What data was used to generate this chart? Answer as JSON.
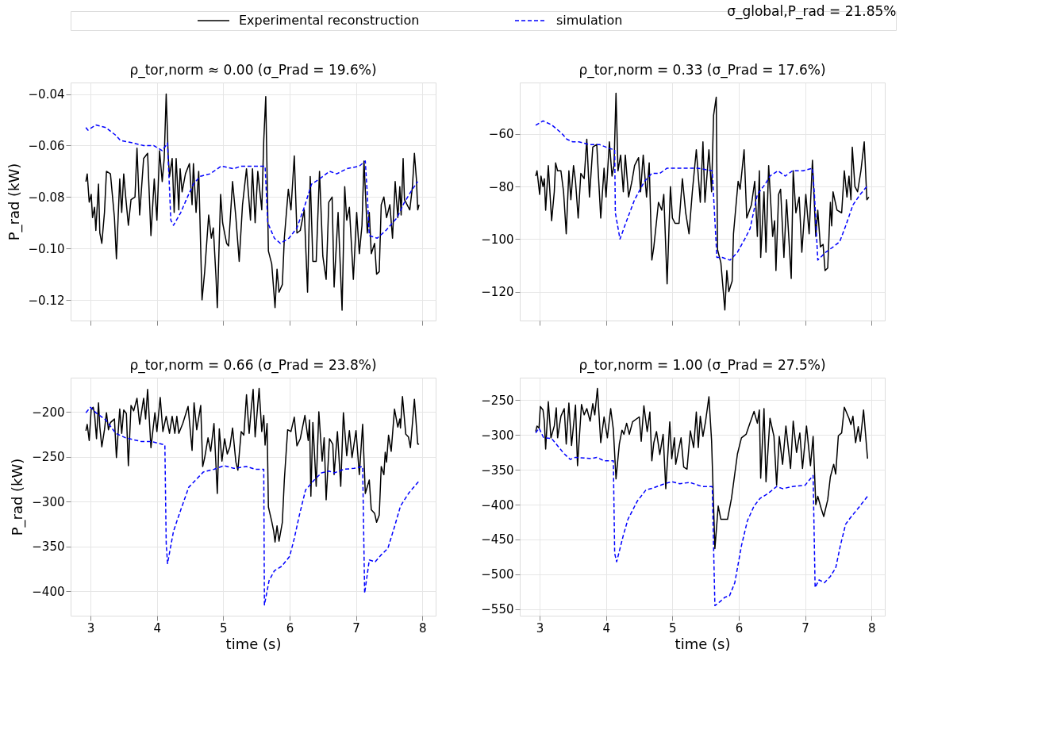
{
  "chart_data": [
    {
      "type": "line",
      "title": "ρ_tor,norm ≈ 0.00  (σ_Prad = 19.6%)",
      "ylabel": "P_rad (kW)",
      "legend": "top",
      "grid": true,
      "marker": "none",
      "tick_labels": "y",
      "annotations": [
        "σ_global,P_rad = 21.85%"
      ],
      "xlim": [
        2.7,
        8.2
      ],
      "xticks": [
        3,
        4,
        5,
        6,
        7,
        8
      ],
      "ylim": [
        -0.128,
        -0.0355
      ],
      "yticks": [
        {
          "value": -0.12,
          "label": "−0.12"
        },
        {
          "value": -0.1,
          "label": "−0.10"
        },
        {
          "value": -0.08,
          "label": "−0.08"
        },
        {
          "value": -0.06,
          "label": "−0.06"
        },
        {
          "value": -0.04,
          "label": "−0.04"
        }
      ],
      "series": [
        {
          "name": "Experimental reconstruction",
          "color": "#000000",
          "line_style": "solid",
          "x": [
            2.93,
            2.95,
            2.98,
            3.01,
            3.03,
            3.06,
            3.08,
            3.12,
            3.14,
            3.17,
            3.21,
            3.24,
            3.3,
            3.36,
            3.39,
            3.44,
            3.47,
            3.5,
            3.53,
            3.57,
            3.61,
            3.67,
            3.7,
            3.74,
            3.8,
            3.86,
            3.91,
            3.96,
            4.0,
            4.04,
            4.08,
            4.11,
            4.14,
            4.17,
            4.19,
            4.23,
            4.26,
            4.29,
            4.33,
            4.35,
            4.38,
            4.43,
            4.49,
            4.53,
            4.55,
            4.59,
            4.63,
            4.68,
            4.72,
            4.78,
            4.82,
            4.85,
            4.89,
            4.91,
            4.96,
            4.99,
            5.05,
            5.08,
            5.14,
            5.19,
            5.24,
            5.29,
            5.35,
            5.41,
            5.44,
            5.48,
            5.52,
            5.58,
            5.61,
            5.64,
            5.68,
            5.73,
            5.78,
            5.81,
            5.84,
            5.89,
            5.92,
            5.98,
            6.02,
            6.07,
            6.11,
            6.16,
            6.22,
            6.27,
            6.31,
            6.35,
            6.4,
            6.45,
            6.5,
            6.55,
            6.59,
            6.64,
            6.67,
            6.73,
            6.79,
            6.83,
            6.86,
            6.9,
            6.96,
            7.01,
            7.05,
            7.09,
            7.12,
            7.17,
            7.2,
            7.23,
            7.28,
            7.31,
            7.35,
            7.38,
            7.42,
            7.46,
            7.51,
            7.55,
            7.59,
            7.63,
            7.66,
            7.68,
            7.71,
            7.73,
            7.81,
            7.85,
            7.88,
            7.91,
            7.93,
            7.95
          ],
          "values": [
            -0.074,
            -0.071,
            -0.082,
            -0.079,
            -0.088,
            -0.084,
            -0.093,
            -0.075,
            -0.094,
            -0.098,
            -0.086,
            -0.07,
            -0.071,
            -0.088,
            -0.104,
            -0.073,
            -0.086,
            -0.071,
            -0.08,
            -0.091,
            -0.081,
            -0.08,
            -0.061,
            -0.087,
            -0.065,
            -0.063,
            -0.095,
            -0.073,
            -0.089,
            -0.062,
            -0.074,
            -0.065,
            -0.04,
            -0.064,
            -0.072,
            -0.065,
            -0.086,
            -0.065,
            -0.085,
            -0.069,
            -0.078,
            -0.071,
            -0.067,
            -0.083,
            -0.067,
            -0.086,
            -0.07,
            -0.12,
            -0.109,
            -0.087,
            -0.096,
            -0.092,
            -0.111,
            -0.123,
            -0.079,
            -0.09,
            -0.098,
            -0.099,
            -0.074,
            -0.088,
            -0.105,
            -0.083,
            -0.069,
            -0.089,
            -0.069,
            -0.09,
            -0.07,
            -0.085,
            -0.058,
            -0.041,
            -0.101,
            -0.106,
            -0.123,
            -0.108,
            -0.117,
            -0.114,
            -0.096,
            -0.077,
            -0.085,
            -0.064,
            -0.094,
            -0.093,
            -0.085,
            -0.117,
            -0.072,
            -0.105,
            -0.105,
            -0.07,
            -0.103,
            -0.112,
            -0.082,
            -0.08,
            -0.115,
            -0.086,
            -0.124,
            -0.076,
            -0.089,
            -0.084,
            -0.112,
            -0.086,
            -0.102,
            -0.091,
            -0.066,
            -0.094,
            -0.086,
            -0.102,
            -0.098,
            -0.11,
            -0.109,
            -0.083,
            -0.08,
            -0.088,
            -0.083,
            -0.096,
            -0.074,
            -0.088,
            -0.076,
            -0.087,
            -0.065,
            -0.081,
            -0.085,
            -0.076,
            -0.063,
            -0.073,
            -0.085,
            -0.083
          ]
        },
        {
          "name": "simulation",
          "color": "#0000ff",
          "line_style": "dashed",
          "x": [
            2.93,
            2.96,
            3.08,
            3.23,
            3.38,
            3.45,
            3.64,
            3.8,
            3.95,
            4.08,
            4.16,
            4.17,
            4.21,
            4.25,
            4.36,
            4.46,
            4.55,
            4.65,
            4.8,
            4.97,
            5.16,
            5.27,
            5.5,
            5.63,
            5.67,
            5.77,
            5.86,
            5.99,
            6.11,
            6.22,
            6.33,
            6.45,
            6.6,
            6.71,
            6.86,
            7.05,
            7.14,
            7.17,
            7.2,
            7.32,
            7.45,
            7.62,
            7.73,
            7.85,
            7.93
          ],
          "values": [
            -0.053,
            -0.054,
            -0.052,
            -0.053,
            -0.056,
            -0.058,
            -0.059,
            -0.06,
            -0.06,
            -0.062,
            -0.059,
            -0.065,
            -0.089,
            -0.091,
            -0.086,
            -0.08,
            -0.075,
            -0.072,
            -0.071,
            -0.068,
            -0.069,
            -0.068,
            -0.068,
            -0.068,
            -0.09,
            -0.096,
            -0.098,
            -0.096,
            -0.092,
            -0.084,
            -0.075,
            -0.073,
            -0.07,
            -0.071,
            -0.069,
            -0.068,
            -0.066,
            -0.079,
            -0.095,
            -0.096,
            -0.093,
            -0.088,
            -0.082,
            -0.077,
            -0.074
          ]
        }
      ]
    },
    {
      "type": "line",
      "title": "ρ_tor,norm = 0.33  (σ_Prad = 17.6%)",
      "grid": true,
      "marker": "none",
      "tick_labels": "y",
      "xlim": [
        2.7,
        8.2
      ],
      "xticks": [
        3,
        4,
        5,
        6,
        7,
        8
      ],
      "ylim": [
        -131,
        -40.4
      ],
      "yticks": [
        -120,
        -100,
        -80,
        -60
      ],
      "series": [
        {
          "name": "Experimental reconstruction",
          "color": "#000000",
          "line_style": "solid",
          "x": [
            2.94,
            2.96,
            3.0,
            3.02,
            3.05,
            3.07,
            3.09,
            3.13,
            3.18,
            3.22,
            3.24,
            3.27,
            3.32,
            3.36,
            3.4,
            3.44,
            3.47,
            3.51,
            3.54,
            3.58,
            3.62,
            3.67,
            3.71,
            3.75,
            3.8,
            3.86,
            3.92,
            3.97,
            4.0,
            4.05,
            4.09,
            4.12,
            4.15,
            4.18,
            4.22,
            4.26,
            4.29,
            4.34,
            4.39,
            4.43,
            4.49,
            4.52,
            4.56,
            4.61,
            4.65,
            4.69,
            4.72,
            4.79,
            4.84,
            4.87,
            4.92,
            4.97,
            5.0,
            5.04,
            5.1,
            5.15,
            5.2,
            5.25,
            5.3,
            5.36,
            5.39,
            5.42,
            5.46,
            5.49,
            5.55,
            5.59,
            5.62,
            5.66,
            5.68,
            5.73,
            5.79,
            5.82,
            5.85,
            5.9,
            5.92,
            5.99,
            6.02,
            6.08,
            6.12,
            6.19,
            6.24,
            6.28,
            6.31,
            6.33,
            6.38,
            6.41,
            6.45,
            6.51,
            6.54,
            6.56,
            6.6,
            6.63,
            6.68,
            6.72,
            6.79,
            6.82,
            6.86,
            6.91,
            6.95,
            7.01,
            7.06,
            7.11,
            7.16,
            7.19,
            7.23,
            7.27,
            7.3,
            7.34,
            7.38,
            7.4,
            7.42,
            7.48,
            7.55,
            7.59,
            7.63,
            7.66,
            7.69,
            7.71,
            7.75,
            7.79,
            7.84,
            7.89,
            7.93,
            7.96
          ],
          "values": [
            -76,
            -74,
            -83,
            -76,
            -80,
            -77,
            -89,
            -72,
            -93,
            -82,
            -71,
            -74,
            -74,
            -82,
            -98,
            -74,
            -85,
            -72,
            -78,
            -92,
            -75,
            -77,
            -62,
            -84,
            -65,
            -64,
            -92,
            -73,
            -84,
            -63,
            -76,
            -72,
            -44.5,
            -74,
            -68,
            -82,
            -68,
            -84,
            -78,
            -72,
            -69,
            -82,
            -68,
            -84,
            -71,
            -108,
            -103,
            -86,
            -89,
            -83,
            -117,
            -80,
            -92,
            -94,
            -94,
            -77,
            -90,
            -98,
            -82,
            -66,
            -76,
            -86,
            -63,
            -86,
            -66,
            -82,
            -53,
            -46,
            -104,
            -109,
            -127,
            -112,
            -120,
            -116,
            -98,
            -78,
            -81,
            -66,
            -92,
            -87,
            -78,
            -99,
            -74,
            -107,
            -82,
            -105,
            -72,
            -99,
            -93,
            -112,
            -83,
            -81,
            -107,
            -85,
            -115,
            -74,
            -90,
            -84,
            -105,
            -83,
            -98,
            -70,
            -99,
            -89,
            -103,
            -102,
            -112,
            -111,
            -86,
            -95,
            -82,
            -89,
            -90,
            -74,
            -84,
            -76,
            -85,
            -65,
            -80,
            -82,
            -74,
            -63,
            -85,
            -84
          ]
        },
        {
          "name": "simulation",
          "color": "#0000ff",
          "line_style": "dashed",
          "x": [
            2.94,
            3.05,
            3.18,
            3.33,
            3.41,
            3.5,
            3.59,
            3.75,
            3.9,
            4.05,
            4.13,
            4.14,
            4.21,
            4.31,
            4.43,
            4.58,
            4.69,
            4.81,
            4.92,
            5.07,
            5.22,
            5.38,
            5.6,
            5.67,
            5.75,
            5.87,
            5.98,
            6.09,
            6.17,
            6.28,
            6.4,
            6.47,
            6.59,
            6.7,
            6.81,
            6.97,
            7.11,
            7.14,
            7.19,
            7.31,
            7.42,
            7.52,
            7.61,
            7.72,
            7.83,
            7.94
          ],
          "values": [
            -56.7,
            -55,
            -56.5,
            -59.7,
            -62,
            -63,
            -63,
            -64,
            -64,
            -65.5,
            -66,
            -90,
            -100,
            -93,
            -85,
            -78,
            -75,
            -75,
            -73,
            -73,
            -73,
            -73,
            -74,
            -107,
            -107,
            -108,
            -105,
            -100,
            -96,
            -83,
            -79,
            -76,
            -74,
            -76,
            -74,
            -74,
            -73,
            -83,
            -108,
            -105,
            -103,
            -101,
            -95,
            -87,
            -83,
            -79.6
          ]
        }
      ]
    },
    {
      "type": "line",
      "title": "ρ_tor,norm = 0.66  (σ_Prad = 23.8%)",
      "xlabel": "time (s)",
      "ylabel": "P_rad (kW)",
      "grid": true,
      "marker": "none",
      "xlim": [
        2.7,
        8.2
      ],
      "xticks": [
        3,
        4,
        5,
        6,
        7,
        8
      ],
      "ylim": [
        -427,
        -162
      ],
      "yticks": [
        -400,
        -350,
        -300,
        -250,
        -200
      ],
      "series": [
        {
          "name": "Experimental reconstruction",
          "color": "#000000",
          "line_style": "solid",
          "x": [
            2.93,
            2.95,
            2.98,
            3.01,
            3.04,
            3.06,
            3.09,
            3.12,
            3.14,
            3.17,
            3.21,
            3.24,
            3.27,
            3.3,
            3.36,
            3.39,
            3.44,
            3.47,
            3.5,
            3.54,
            3.57,
            3.61,
            3.65,
            3.7,
            3.74,
            3.8,
            3.83,
            3.86,
            3.91,
            3.97,
            4.0,
            4.05,
            4.09,
            4.14,
            4.19,
            4.23,
            4.27,
            4.3,
            4.33,
            4.39,
            4.47,
            4.53,
            4.56,
            4.6,
            4.66,
            4.69,
            4.72,
            4.77,
            4.81,
            4.86,
            4.91,
            4.94,
            4.98,
            5.02,
            5.06,
            5.1,
            5.14,
            5.19,
            5.22,
            5.27,
            5.31,
            5.35,
            5.39,
            5.42,
            5.45,
            5.48,
            5.54,
            5.58,
            5.61,
            5.63,
            5.66,
            5.68,
            5.73,
            5.76,
            5.78,
            5.81,
            5.84,
            5.89,
            5.92,
            5.97,
            6.02,
            6.07,
            6.11,
            6.16,
            6.23,
            6.28,
            6.3,
            6.32,
            6.35,
            6.4,
            6.44,
            6.49,
            6.52,
            6.55,
            6.6,
            6.65,
            6.67,
            6.72,
            6.77,
            6.81,
            6.86,
            6.9,
            6.94,
            7.0,
            7.05,
            7.1,
            7.14,
            7.2,
            7.23,
            7.28,
            7.31,
            7.35,
            7.38,
            7.42,
            7.44,
            7.46,
            7.49,
            7.53,
            7.58,
            7.63,
            7.66,
            7.67,
            7.7,
            7.75,
            7.79,
            7.82,
            7.88,
            7.93,
            7.95
          ],
          "values": [
            -221,
            -214,
            -232,
            -197,
            -195,
            -202,
            -230,
            -190,
            -217,
            -239,
            -220,
            -201,
            -220,
            -212,
            -208,
            -251,
            -197,
            -224,
            -198,
            -202,
            -260,
            -193,
            -199,
            -185,
            -214,
            -185,
            -208,
            -175,
            -240,
            -201,
            -222,
            -184,
            -222,
            -205,
            -224,
            -205,
            -224,
            -205,
            -224,
            -213,
            -194,
            -243,
            -190,
            -220,
            -193,
            -261,
            -251,
            -229,
            -244,
            -213,
            -291,
            -219,
            -255,
            -230,
            -247,
            -239,
            -218,
            -256,
            -265,
            -222,
            -226,
            -181,
            -224,
            -198,
            -175,
            -228,
            -174,
            -222,
            -204,
            -237,
            -213,
            -306,
            -322,
            -333,
            -345,
            -327,
            -344,
            -323,
            -276,
            -220,
            -222,
            -206,
            -238,
            -230,
            -204,
            -232,
            -209,
            -294,
            -212,
            -283,
            -200,
            -255,
            -229,
            -298,
            -230,
            -236,
            -270,
            -222,
            -283,
            -201,
            -249,
            -221,
            -251,
            -221,
            -270,
            -214,
            -291,
            -276,
            -309,
            -313,
            -323,
            -315,
            -261,
            -270,
            -245,
            -256,
            -226,
            -244,
            -197,
            -217,
            -208,
            -218,
            -183,
            -225,
            -228,
            -240,
            -186,
            -236,
            -236
          ]
        },
        {
          "name": "simulation",
          "color": "#0000ff",
          "line_style": "dashed",
          "x": [
            2.93,
            3.0,
            3.08,
            3.23,
            3.38,
            3.53,
            3.76,
            3.91,
            4.12,
            4.14,
            4.16,
            4.25,
            4.36,
            4.48,
            4.7,
            4.86,
            5.01,
            5.16,
            5.35,
            5.48,
            5.61,
            5.62,
            5.69,
            5.77,
            5.88,
            6.0,
            6.07,
            6.15,
            6.24,
            6.37,
            6.48,
            6.59,
            6.67,
            6.82,
            6.97,
            7.1,
            7.13,
            7.2,
            7.29,
            7.37,
            7.48,
            7.58,
            7.67,
            7.8,
            7.94
          ],
          "values": [
            -201,
            -195,
            -201,
            -209,
            -224,
            -229,
            -233,
            -233,
            -237,
            -346,
            -369,
            -333,
            -309,
            -284,
            -267,
            -264,
            -260,
            -263,
            -261,
            -264,
            -264,
            -415,
            -388,
            -377,
            -372,
            -361,
            -341,
            -314,
            -287,
            -276,
            -268,
            -266,
            -268,
            -264,
            -263,
            -261,
            -402,
            -365,
            -367,
            -360,
            -352,
            -328,
            -305,
            -290,
            -278
          ]
        }
      ]
    },
    {
      "type": "line",
      "title": "ρ_tor,norm = 1.00  (σ_Prad = 27.5%)",
      "xlabel": "time (s)",
      "grid": true,
      "marker": "none",
      "xlim": [
        2.7,
        8.2
      ],
      "xticks": [
        3,
        4,
        5,
        6,
        7,
        8
      ],
      "ylim": [
        -559.4,
        -217.6
      ],
      "yticks": [
        -550,
        -500,
        -450,
        -400,
        -350,
        -300,
        -250
      ],
      "series": [
        {
          "name": "Experimental reconstruction",
          "color": "#000000",
          "line_style": "solid",
          "x": [
            2.94,
            2.96,
            2.99,
            3.01,
            3.05,
            3.07,
            3.09,
            3.13,
            3.17,
            3.22,
            3.25,
            3.27,
            3.32,
            3.37,
            3.4,
            3.44,
            3.48,
            3.54,
            3.57,
            3.63,
            3.67,
            3.71,
            3.76,
            3.8,
            3.83,
            3.87,
            3.92,
            3.97,
            4.02,
            4.07,
            4.11,
            4.15,
            4.2,
            4.24,
            4.27,
            4.31,
            4.35,
            4.4,
            4.5,
            4.53,
            4.57,
            4.62,
            4.66,
            4.69,
            4.72,
            4.76,
            4.81,
            4.86,
            4.9,
            4.96,
            4.99,
            5.03,
            5.05,
            5.13,
            5.17,
            5.22,
            5.27,
            5.32,
            5.36,
            5.39,
            5.42,
            5.46,
            5.5,
            5.55,
            5.59,
            5.64,
            5.69,
            5.73,
            5.77,
            5.83,
            5.89,
            5.98,
            6.04,
            6.11,
            6.16,
            6.23,
            6.28,
            6.31,
            6.33,
            6.38,
            6.41,
            6.47,
            6.53,
            6.57,
            6.61,
            6.66,
            6.71,
            6.78,
            6.82,
            6.87,
            6.92,
            6.96,
            7.02,
            7.08,
            7.12,
            7.16,
            7.19,
            7.24,
            7.28,
            7.34,
            7.38,
            7.43,
            7.46,
            7.5,
            7.55,
            7.59,
            7.66,
            7.69,
            7.72,
            7.76,
            7.8,
            7.83,
            7.88,
            7.94
          ],
          "values": [
            -295,
            -287,
            -290,
            -259,
            -264,
            -280,
            -320,
            -252,
            -304,
            -287,
            -261,
            -304,
            -273,
            -262,
            -313,
            -254,
            -315,
            -257,
            -344,
            -256,
            -271,
            -262,
            -280,
            -255,
            -271,
            -233,
            -311,
            -274,
            -304,
            -262,
            -292,
            -363,
            -313,
            -293,
            -299,
            -283,
            -299,
            -281,
            -274,
            -309,
            -258,
            -295,
            -267,
            -337,
            -311,
            -295,
            -328,
            -299,
            -377,
            -281,
            -334,
            -304,
            -342,
            -304,
            -346,
            -349,
            -294,
            -318,
            -267,
            -318,
            -273,
            -302,
            -280,
            -245,
            -308,
            -463,
            -402,
            -421,
            -421,
            -421,
            -391,
            -327,
            -304,
            -299,
            -285,
            -266,
            -283,
            -264,
            -362,
            -262,
            -367,
            -276,
            -302,
            -372,
            -302,
            -342,
            -287,
            -348,
            -280,
            -325,
            -297,
            -348,
            -287,
            -344,
            -302,
            -400,
            -388,
            -405,
            -417,
            -393,
            -360,
            -342,
            -356,
            -301,
            -297,
            -260,
            -276,
            -285,
            -273,
            -311,
            -288,
            -309,
            -264,
            -334
          ]
        },
        {
          "name": "simulation",
          "color": "#0000ff",
          "line_style": "dashed",
          "x": [
            2.94,
            2.99,
            3.06,
            3.18,
            3.25,
            3.37,
            3.46,
            3.54,
            3.67,
            3.78,
            3.86,
            3.97,
            4.11,
            4.13,
            4.16,
            4.26,
            4.33,
            4.47,
            4.6,
            4.71,
            4.88,
            4.99,
            5.11,
            5.26,
            5.45,
            5.6,
            5.64,
            5.72,
            5.79,
            5.86,
            5.94,
            6.04,
            6.13,
            6.23,
            6.32,
            6.44,
            6.57,
            6.66,
            6.81,
            7.0,
            7.12,
            7.15,
            7.21,
            7.29,
            7.38,
            7.46,
            7.53,
            7.61,
            7.68,
            7.8,
            7.94
          ],
          "values": [
            -297,
            -290,
            -304,
            -305,
            -313,
            -327,
            -335,
            -332,
            -333,
            -334,
            -332,
            -337,
            -337,
            -470,
            -482,
            -444,
            -421,
            -395,
            -379,
            -376,
            -370,
            -367,
            -370,
            -368,
            -374,
            -374,
            -545,
            -539,
            -533,
            -531,
            -512,
            -459,
            -423,
            -402,
            -391,
            -384,
            -374,
            -377,
            -374,
            -372,
            -358,
            -519,
            -508,
            -512,
            -503,
            -491,
            -459,
            -428,
            -419,
            -405,
            -388
          ]
        }
      ]
    }
  ]
}
